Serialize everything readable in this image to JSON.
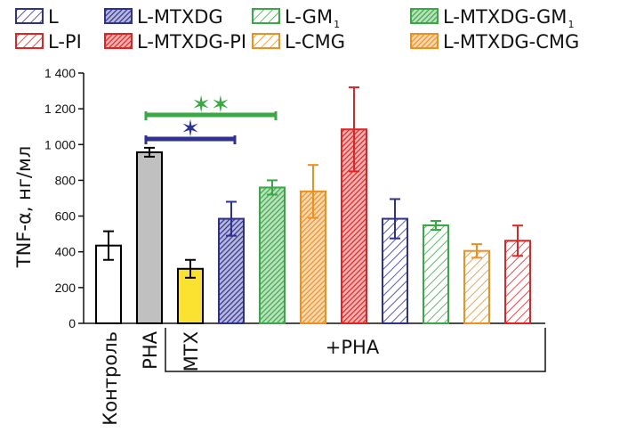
{
  "chart_data": {
    "type": "bar",
    "ylabel": "TNF-α, нг/мл",
    "ylim": [
      0,
      1400
    ],
    "yticks": [
      0,
      200,
      400,
      600,
      800,
      1000,
      1200,
      1400
    ],
    "ytick_labels": [
      "0",
      "200",
      "400",
      "600",
      "800",
      "1 000",
      "1 200",
      "1 400"
    ],
    "grid": false,
    "legend_position": "top",
    "legend": [
      {
        "label": "L",
        "sub": "",
        "color": "#2e3192",
        "pattern": "hatch"
      },
      {
        "label": "L-MTXDG",
        "sub": "",
        "color": "#2e3192",
        "pattern": "solid"
      },
      {
        "label": "L-GM",
        "sub": "1",
        "color": "#3aa845",
        "pattern": "hatch"
      },
      {
        "label": "L-MTXDG-GM",
        "sub": "1",
        "color": "#3aa845",
        "pattern": "solid"
      },
      {
        "label": "L-PI",
        "sub": "",
        "color": "#e32222",
        "pattern": "hatch"
      },
      {
        "label": "L-MTXDG-PI",
        "sub": "",
        "color": "#e32222",
        "pattern": "solid"
      },
      {
        "label": "L-CMG",
        "sub": "",
        "color": "#ef8f1e",
        "pattern": "hatch"
      },
      {
        "label": "L-MTXDG-CMG",
        "sub": "",
        "color": "#ef8f1e",
        "pattern": "solid"
      }
    ],
    "bars": [
      {
        "name": "Контроль",
        "value": 435,
        "err": 80,
        "color": "#000000",
        "fill": "#ffffff",
        "pattern": "none"
      },
      {
        "name": "PHA",
        "value": 957,
        "err": 25,
        "color": "#000000",
        "fill": "#c0c0c0",
        "pattern": "none"
      },
      {
        "name": "MTX",
        "value": 305,
        "err": 50,
        "color": "#000000",
        "fill": "#fbe130",
        "pattern": "none"
      },
      {
        "name": "L-MTXDG",
        "value": 585,
        "err": 95,
        "color": "#2e3192",
        "fill": "",
        "pattern": "solid"
      },
      {
        "name": "L-MTXDG-GM1",
        "value": 760,
        "err": 40,
        "color": "#3aa845",
        "fill": "",
        "pattern": "solid"
      },
      {
        "name": "L-MTXDG-CMG",
        "value": 738,
        "err": 148,
        "color": "#ef8f1e",
        "fill": "",
        "pattern": "solid"
      },
      {
        "name": "L-MTXDG-PI",
        "value": 1085,
        "err": 235,
        "color": "#e32222",
        "fill": "",
        "pattern": "solid"
      },
      {
        "name": "L",
        "value": 585,
        "err": 110,
        "color": "#2e3192",
        "fill": "",
        "pattern": "hatch"
      },
      {
        "name": "L-GM1",
        "value": 548,
        "err": 25,
        "color": "#3aa845",
        "fill": "",
        "pattern": "hatch"
      },
      {
        "name": "L-CMG",
        "value": 405,
        "err": 38,
        "color": "#ef8f1e",
        "fill": "",
        "pattern": "hatch"
      },
      {
        "name": "L-PI",
        "value": 462,
        "err": 85,
        "color": "#e32222",
        "fill": "",
        "pattern": "hatch"
      }
    ],
    "x_labels": {
      "control": "Контроль",
      "pha": "PHA",
      "mtx": "MTX",
      "group": "+PHA"
    },
    "significance": [
      {
        "stars": "✶",
        "color": "#2e3192",
        "from_bar": 1,
        "to_bar": 3
      },
      {
        "stars": "✶✶",
        "color": "#3aa845",
        "from_bar": 1,
        "to_bar": 4
      }
    ]
  }
}
